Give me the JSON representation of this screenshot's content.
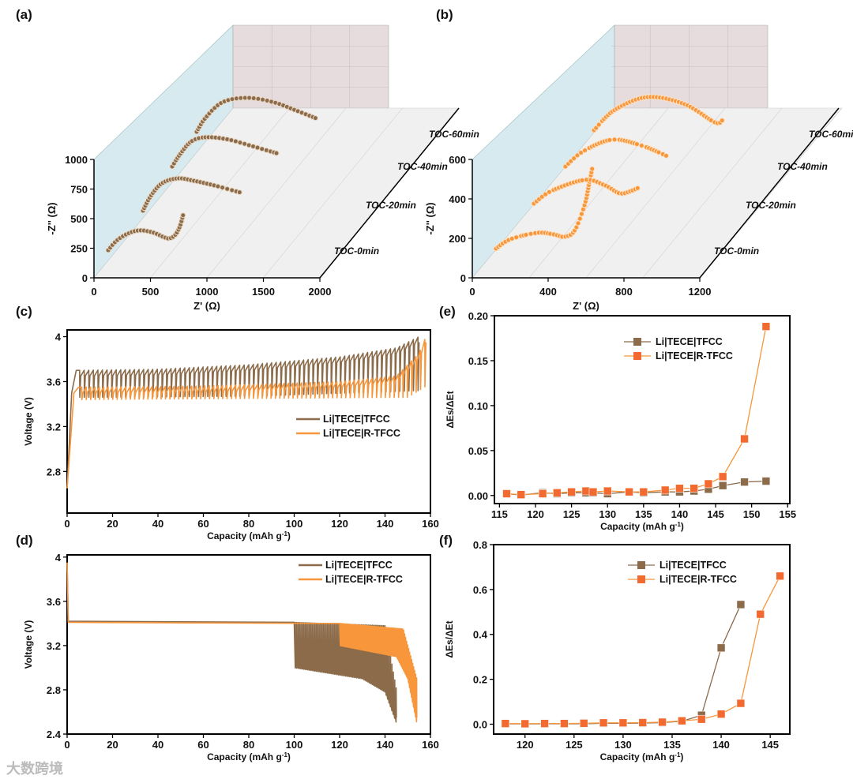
{
  "colors": {
    "tfcc": "#8B6B4A",
    "rtfcc": "#F7963B",
    "rtfcc_marker": "#F26A30",
    "side_wall": "#D6EAF0",
    "back_wall": "#E6DCDE",
    "floor": "#F0F0F0"
  },
  "watermark": "大数跨境",
  "chart_data": [
    {
      "id": "a",
      "panel_label": "(a)",
      "type": "scatter",
      "projection": "3d-waterfall",
      "xlabel": "Z' (Ω)",
      "ylabel": "-Z'' (Ω)",
      "xlim": [
        0,
        2000
      ],
      "ylim": [
        0,
        1000
      ],
      "xticks": [
        "0",
        "500",
        "1000",
        "1500",
        "2000"
      ],
      "yticks": [
        "0",
        "250",
        "500",
        "750",
        "1000"
      ],
      "series": [
        {
          "name": "TOC-0min",
          "points": [
            [
              126,
              0
            ],
            [
              200,
              80
            ],
            [
              300,
              140
            ],
            [
              405,
              167
            ],
            [
              520,
              150
            ],
            [
              620,
              110
            ],
            [
              671,
              100
            ],
            [
              720,
              130
            ],
            [
              760,
              200
            ],
            [
              790,
              300
            ]
          ]
        },
        {
          "name": "TOC-20min",
          "points": [
            [
              154,
              0
            ],
            [
              220,
              120
            ],
            [
              320,
              230
            ],
            [
              461,
              273
            ],
            [
              620,
              250
            ],
            [
              800,
              210
            ],
            [
              1020,
              153
            ]
          ]
        },
        {
          "name": "TOC-40min",
          "points": [
            [
              133,
              40
            ],
            [
              200,
              140
            ],
            [
              300,
              250
            ],
            [
              427,
              287
            ],
            [
              620,
              270
            ],
            [
              850,
              210
            ],
            [
              1056,
              153
            ]
          ]
        },
        {
          "name": "TOC-60min",
          "points": [
            [
              70,
              0
            ],
            [
              150,
              120
            ],
            [
              300,
              250
            ],
            [
              517,
              287
            ],
            [
              750,
              250
            ],
            [
              950,
              180
            ],
            [
              1130,
              113
            ]
          ]
        }
      ]
    },
    {
      "id": "b",
      "panel_label": "(b)",
      "type": "scatter",
      "projection": "3d-waterfall",
      "xlabel": "Z' (Ω)",
      "ylabel": "-Z'' (Ω)",
      "xlim": [
        0,
        1200
      ],
      "ylim": [
        0,
        600
      ],
      "xticks": [
        "0",
        "400",
        "800",
        "1200"
      ],
      "yticks": [
        "0",
        "200",
        "400",
        "600"
      ],
      "series": [
        {
          "name": "TOC-0min",
          "points": [
            [
              125,
              8
            ],
            [
              200,
              55
            ],
            [
              342,
              88
            ],
            [
              430,
              80
            ],
            [
              487,
              68
            ],
            [
              540,
              100
            ],
            [
              592,
              228
            ],
            [
              615,
              330
            ],
            [
              633,
              416
            ]
          ]
        },
        {
          "name": "TOC-20min",
          "points": [
            [
              158,
              36
            ],
            [
              250,
              100
            ],
            [
              425,
              156
            ],
            [
              530,
              130
            ],
            [
              612,
              88
            ],
            [
              670,
              100
            ],
            [
              717,
              120
            ]
          ]
        },
        {
          "name": "TOC-40min",
          "points": [
            [
              158,
              24
            ],
            [
              250,
              100
            ],
            [
              404,
              160
            ],
            [
              560,
              130
            ],
            [
              696,
              76
            ]
          ]
        },
        {
          "name": "TOC-60min",
          "points": [
            [
              142,
              8
            ],
            [
              250,
              110
            ],
            [
              425,
              176
            ],
            [
              620,
              140
            ],
            [
              779,
              48
            ],
            [
              821,
              60
            ]
          ]
        }
      ]
    },
    {
      "id": "c",
      "panel_label": "(c)",
      "type": "line",
      "mode": "charge",
      "xlabel": "Capacity (mAh g",
      "xlabel_sup": "-1",
      "xlabel_end": ")",
      "ylabel": "Voltage (V)",
      "xlim": [
        0,
        160
      ],
      "ylim": [
        2.43,
        4.06
      ],
      "xticks": [
        0,
        20,
        40,
        60,
        80,
        100,
        120,
        140,
        160
      ],
      "yticks": [
        2.8,
        3.2,
        3.6,
        4.0
      ],
      "series": [
        {
          "name": "Li|TECE|TFCC",
          "pulses": 75,
          "upper": [
            [
              0,
              2.65
            ],
            [
              2,
              3.5
            ],
            [
              4,
              3.7
            ],
            [
              40,
              3.71
            ],
            [
              80,
              3.75
            ],
            [
              120,
              3.82
            ],
            [
              145,
              3.9
            ],
            [
              155,
              4.0
            ]
          ],
          "lower": [
            [
              0,
              2.65
            ],
            [
              2,
              3.45
            ],
            [
              4,
              3.46
            ],
            [
              80,
              3.47
            ],
            [
              155,
              3.52
            ]
          ]
        },
        {
          "name": "Li|TECE|R-TFCC",
          "pulses": 79,
          "upper": [
            [
              0,
              2.65
            ],
            [
              3,
              3.5
            ],
            [
              5,
              3.55
            ],
            [
              60,
              3.56
            ],
            [
              120,
              3.6
            ],
            [
              145,
              3.65
            ],
            [
              155,
              3.85
            ],
            [
              158,
              4.0
            ]
          ],
          "lower": [
            [
              0,
              2.65
            ],
            [
              3,
              3.44
            ],
            [
              5,
              3.44
            ],
            [
              150,
              3.46
            ],
            [
              158,
              3.56
            ]
          ]
        }
      ]
    },
    {
      "id": "d",
      "panel_label": "(d)",
      "type": "line",
      "mode": "discharge",
      "xlabel": "Capacity (mAh g",
      "xlabel_sup": "-1",
      "xlabel_end": ")",
      "ylabel": "Voltage (V)",
      "xlim": [
        0,
        160
      ],
      "ylim": [
        2.4,
        4.02
      ],
      "xticks": [
        0,
        20,
        40,
        60,
        80,
        100,
        120,
        140,
        160
      ],
      "yticks": [
        2.4,
        2.8,
        3.2,
        3.6,
        4.0
      ],
      "series": [
        {
          "name": "Li|TECE|TFCC",
          "pulses": 73,
          "upper": [
            [
              0,
              3.95
            ],
            [
              0.5,
              3.42
            ],
            [
              100,
              3.41
            ],
            [
              140,
              3.38
            ],
            [
              145,
              2.8
            ]
          ],
          "lower": [
            [
              0,
              3.95
            ],
            [
              0.5,
              3.12
            ],
            [
              40,
              3.09
            ],
            [
              100,
              3.0
            ],
            [
              130,
              2.9
            ],
            [
              140,
              2.78
            ],
            [
              145,
              2.5
            ]
          ]
        },
        {
          "name": "Li|TECE|R-TFCC",
          "pulses": 77,
          "upper": [
            [
              0,
              3.95
            ],
            [
              0.5,
              3.41
            ],
            [
              120,
              3.4
            ],
            [
              148,
              3.35
            ],
            [
              154,
              2.9
            ]
          ],
          "lower": [
            [
              0,
              3.95
            ],
            [
              0.5,
              3.25
            ],
            [
              60,
              3.25
            ],
            [
              120,
              3.2
            ],
            [
              145,
              3.1
            ],
            [
              150,
              2.9
            ],
            [
              154,
              2.5
            ]
          ]
        }
      ]
    },
    {
      "id": "e",
      "panel_label": "(e)",
      "type": "line",
      "xlabel": "Capacity (mAh g",
      "xlabel_sup": "-1",
      "xlabel_end": ")",
      "ylabel": "ΔEs/ΔEt",
      "xlim": [
        114.3,
        155.3
      ],
      "ylim": [
        -0.009,
        0.2
      ],
      "xticks": [
        115,
        120,
        125,
        130,
        135,
        140,
        145,
        150,
        155
      ],
      "yticks": [
        "0.00",
        "0.05",
        "0.10",
        "0.15",
        "0.20"
      ],
      "series": [
        {
          "name": "Li|TECE|TFCC",
          "x": [
            116,
            118,
            121,
            123,
            125,
            127,
            128,
            130,
            133,
            135,
            138,
            140,
            142,
            144,
            146,
            149,
            152
          ],
          "y": [
            0.002,
            0.0005,
            0.003,
            0.002,
            0.003,
            0.003,
            0.003,
            0.002,
            0.004,
            0.003,
            0.004,
            0.004,
            0.005,
            0.007,
            0.011,
            0.015,
            0.016
          ]
        },
        {
          "name": "Li|TECE|R-TFCC",
          "x": [
            116,
            118,
            121,
            123,
            125,
            127,
            128,
            130,
            133,
            135,
            138,
            140,
            142,
            144,
            146,
            149,
            152
          ],
          "y": [
            0.002,
            0.001,
            0.002,
            0.003,
            0.004,
            0.005,
            0.004,
            0.005,
            0.004,
            0.004,
            0.006,
            0.008,
            0.008,
            0.013,
            0.021,
            0.063,
            0.188
          ]
        }
      ]
    },
    {
      "id": "f",
      "panel_label": "(f)",
      "type": "line",
      "xlabel": "Capacity (mAh g",
      "xlabel_sup": "-1",
      "xlabel_end": ")",
      "ylabel": "ΔEs/ΔEt",
      "xlim": [
        116.8,
        147
      ],
      "ylim": [
        -0.044,
        0.8
      ],
      "xticks": [
        120,
        125,
        130,
        135,
        140,
        145
      ],
      "yticks": [
        "0.0",
        "0.2",
        "0.4",
        "0.6",
        "0.8"
      ],
      "series": [
        {
          "name": "Li|TECE|TFCC",
          "x": [
            118,
            120,
            122,
            124,
            126,
            128,
            130,
            132,
            134,
            136,
            138,
            140,
            142
          ],
          "y": [
            0.002,
            0.001,
            0.002,
            0.002,
            0.002,
            0.004,
            0.004,
            0.005,
            0.007,
            0.013,
            0.04,
            0.34,
            0.533
          ]
        },
        {
          "name": "Li|TECE|R-TFCC",
          "x": [
            118,
            120,
            122,
            124,
            126,
            128,
            130,
            132,
            134,
            136,
            138,
            140,
            142,
            144,
            146
          ],
          "y": [
            0.003,
            0.002,
            0.003,
            0.003,
            0.004,
            0.006,
            0.006,
            0.007,
            0.009,
            0.015,
            0.022,
            0.045,
            0.093,
            0.49,
            0.66
          ]
        }
      ]
    }
  ]
}
